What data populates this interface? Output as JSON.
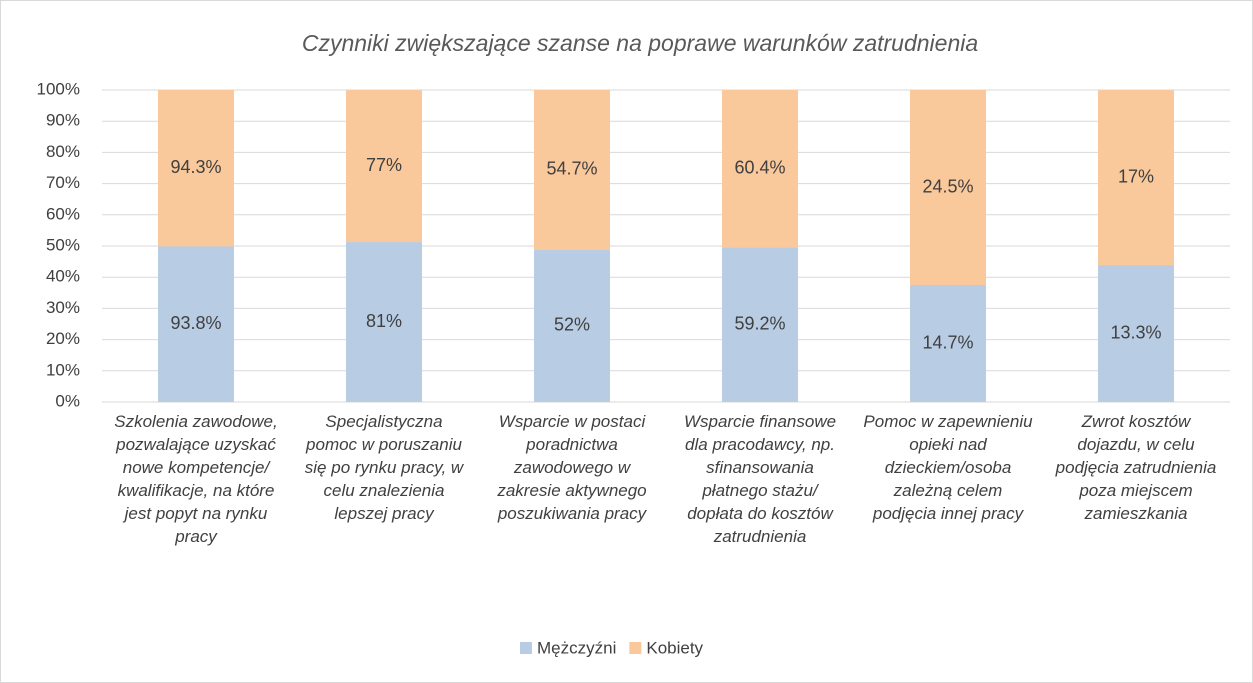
{
  "chart_data": {
    "type": "bar",
    "stacked": "percent",
    "title": "Czynniki zwiększające szanse na poprawe warunków zatrudnienia",
    "categories": [
      "Szkolenia zawodowe, pozwalające uzyskać nowe kompetencje/ kwalifikacje, na które jest popyt na rynku pracy",
      "Specjalistyczna pomoc w poruszaniu się po rynku pracy, w celu znalezienia lepszej pracy",
      "Wsparcie w postaci poradnictwa zawodowego w zakresie aktywnego poszukiwania pracy",
      "Wsparcie finansowe dla pracodawcy, np. sfinansowania płatnego stażu/ dopłata do kosztów zatrudnienia",
      "Pomoc w zapewnieniu opieki nad dzieckiem/osoba zależną celem podjęcia innej pracy",
      "Zwrot kosztów dojazdu, w celu podjęcia zatrudnienia poza miejscem zamieszkania"
    ],
    "series": [
      {
        "name": "Mężczyźni",
        "color": "#b8cce4",
        "values": [
          93.8,
          81,
          52,
          59.2,
          14.7,
          13.3
        ],
        "value_labels": [
          "93.8%",
          "81%",
          "52%",
          "59.2%",
          "14.7%",
          "13.3%"
        ]
      },
      {
        "name": "Kobiety",
        "color": "#f9c89b",
        "values": [
          94.3,
          77,
          54.7,
          60.4,
          24.5,
          17
        ],
        "value_labels": [
          "94.3%",
          "77%",
          "54.7%",
          "60.4%",
          "24.5%",
          "17%"
        ]
      }
    ],
    "ylim": [
      0,
      100
    ],
    "yticks": [
      {
        "value": 0,
        "label": "0%"
      },
      {
        "value": 10,
        "label": "10%"
      },
      {
        "value": 20,
        "label": "20%"
      },
      {
        "value": 30,
        "label": "30%"
      },
      {
        "value": 40,
        "label": "40%"
      },
      {
        "value": 50,
        "label": "50%"
      },
      {
        "value": 60,
        "label": "60%"
      },
      {
        "value": 70,
        "label": "70%"
      },
      {
        "value": 80,
        "label": "80%"
      },
      {
        "value": 90,
        "label": "90%"
      },
      {
        "value": 100,
        "label": "100%"
      }
    ],
    "grid": true,
    "legend": "bottom"
  }
}
